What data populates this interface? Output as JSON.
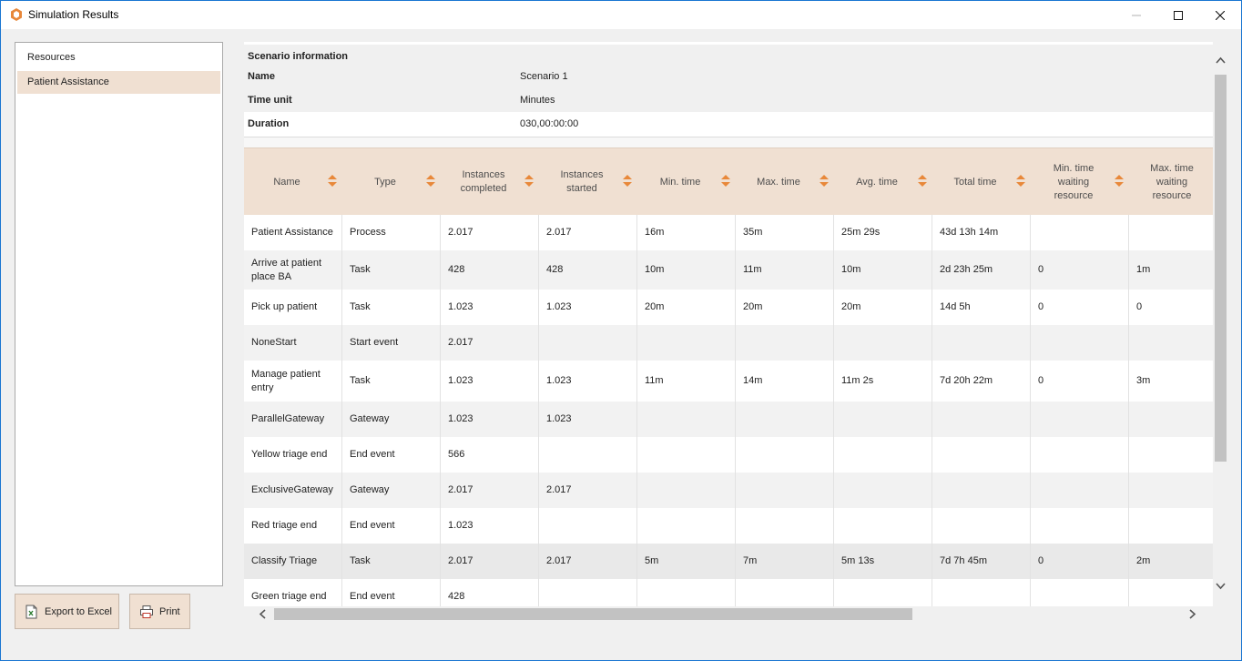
{
  "window": {
    "title": "Simulation Results"
  },
  "sidebar": {
    "items": [
      {
        "label": "Resources"
      },
      {
        "label": "Patient Assistance"
      }
    ]
  },
  "buttons": {
    "export": "Export to Excel",
    "print": "Print"
  },
  "scenario": {
    "heading": "Scenario information",
    "rows": [
      {
        "label": "Name",
        "value": "Scenario 1"
      },
      {
        "label": "Time unit",
        "value": "Minutes"
      },
      {
        "label": "Duration",
        "value": "030,00:00:00"
      }
    ]
  },
  "table": {
    "columns": [
      {
        "label": "Name"
      },
      {
        "label": "Type"
      },
      {
        "label": "Instances completed"
      },
      {
        "label": "Instances started"
      },
      {
        "label": "Min. time"
      },
      {
        "label": "Max. time"
      },
      {
        "label": "Avg. time"
      },
      {
        "label": "Total time"
      },
      {
        "label": "Min. time waiting resource"
      },
      {
        "label": "Max. time waiting resource"
      }
    ],
    "rows": [
      {
        "cells": [
          "Patient Assistance",
          "Process",
          "2.017",
          "2.017",
          "16m",
          "35m",
          "25m 29s",
          "43d 13h 14m",
          "",
          ""
        ]
      },
      {
        "cells": [
          "Arrive at patient place BA",
          "Task",
          "428",
          "428",
          "10m",
          "11m",
          "10m",
          "2d 23h 25m",
          "0",
          "1m"
        ]
      },
      {
        "cells": [
          "Pick up patient",
          "Task",
          "1.023",
          "1.023",
          "20m",
          "20m",
          "20m",
          "14d 5h",
          "0",
          "0"
        ]
      },
      {
        "cells": [
          "NoneStart",
          "Start event",
          "2.017",
          "",
          "",
          "",
          "",
          "",
          "",
          ""
        ]
      },
      {
        "cells": [
          "Manage patient entry",
          "Task",
          "1.023",
          "1.023",
          "11m",
          "14m",
          "11m 2s",
          "7d 20h 22m",
          "0",
          "3m"
        ]
      },
      {
        "cells": [
          "ParallelGateway",
          "Gateway",
          "1.023",
          "1.023",
          "",
          "",
          "",
          "",
          "",
          ""
        ]
      },
      {
        "cells": [
          "Yellow triage end",
          "End event",
          "566",
          "",
          "",
          "",
          "",
          "",
          "",
          ""
        ]
      },
      {
        "cells": [
          "ExclusiveGateway",
          "Gateway",
          "2.017",
          "2.017",
          "",
          "",
          "",
          "",
          "",
          ""
        ]
      },
      {
        "cells": [
          "Red triage end",
          "End event",
          "1.023",
          "",
          "",
          "",
          "",
          "",
          "",
          ""
        ]
      },
      {
        "cells": [
          "Classify Triage",
          "Task",
          "2.017",
          "2.017",
          "5m",
          "7m",
          "5m 13s",
          "7d 7h 45m",
          "0",
          "2m"
        ]
      },
      {
        "cells": [
          "Green triage end",
          "End event",
          "428",
          "",
          "",
          "",
          "",
          "",
          "",
          ""
        ]
      }
    ]
  },
  "colors": {
    "accent": "#e8883a",
    "header_bg": "#f0e0d2",
    "selected_bg": "#f0e0d2"
  }
}
